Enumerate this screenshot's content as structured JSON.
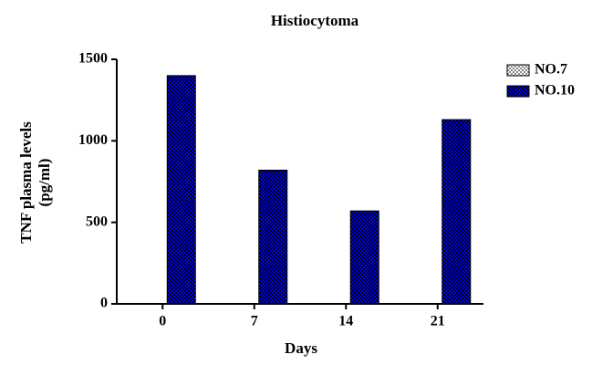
{
  "chart_data": {
    "type": "bar",
    "title": "Histiocytoma",
    "x_label": "Days",
    "y_label": [
      "TNF plasma levels",
      "(pg/ml)"
    ],
    "categories": [
      "0",
      "7",
      "14",
      "21"
    ],
    "series": [
      {
        "name": "NO.7",
        "color": "#ffffff",
        "values": [
          0,
          0,
          0,
          0
        ]
      },
      {
        "name": "NO.10",
        "color": "#0000ff",
        "values": [
          1400,
          820,
          570,
          1130
        ]
      }
    ],
    "ylim": [
      0,
      1500
    ],
    "yticks": [
      0,
      500,
      1000,
      1500
    ],
    "legend": "right"
  }
}
